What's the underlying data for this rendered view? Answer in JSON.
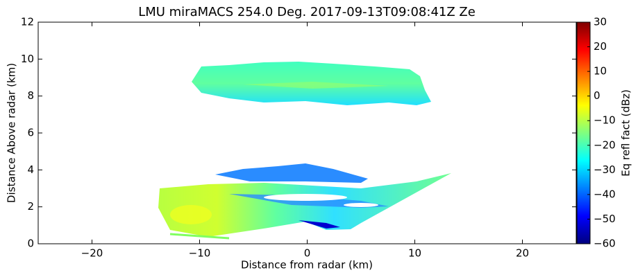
{
  "chart_data": {
    "type": "rhi",
    "title": "LMU miraMACS 254.0 Deg. 2017-09-13T09:08:41Z  Ze",
    "xlabel": "Distance from radar (km)",
    "ylabel": "Distance Above radar  (km)",
    "xlim": [
      -25,
      25
    ],
    "xticks": [
      {
        "value": -20,
        "label": "−20"
      },
      {
        "value": -10,
        "label": "−10"
      },
      0,
      10,
      20
    ],
    "ylim": [
      0,
      12
    ],
    "yticks": [
      0,
      2,
      4,
      6,
      8,
      10,
      12
    ],
    "colormap": "jet",
    "colorbar_label": "Eq refl fact (dBz)",
    "clim": [
      -60,
      30
    ],
    "cticks": [
      {
        "value": -60,
        "label": "−60"
      },
      {
        "value": -50,
        "label": "−50"
      },
      {
        "value": -40,
        "label": "−40"
      },
      {
        "value": -30,
        "label": "−30"
      },
      {
        "value": -20,
        "label": "−20"
      },
      {
        "value": -10,
        "label": "−10"
      },
      0,
      10,
      20,
      30
    ]
  }
}
